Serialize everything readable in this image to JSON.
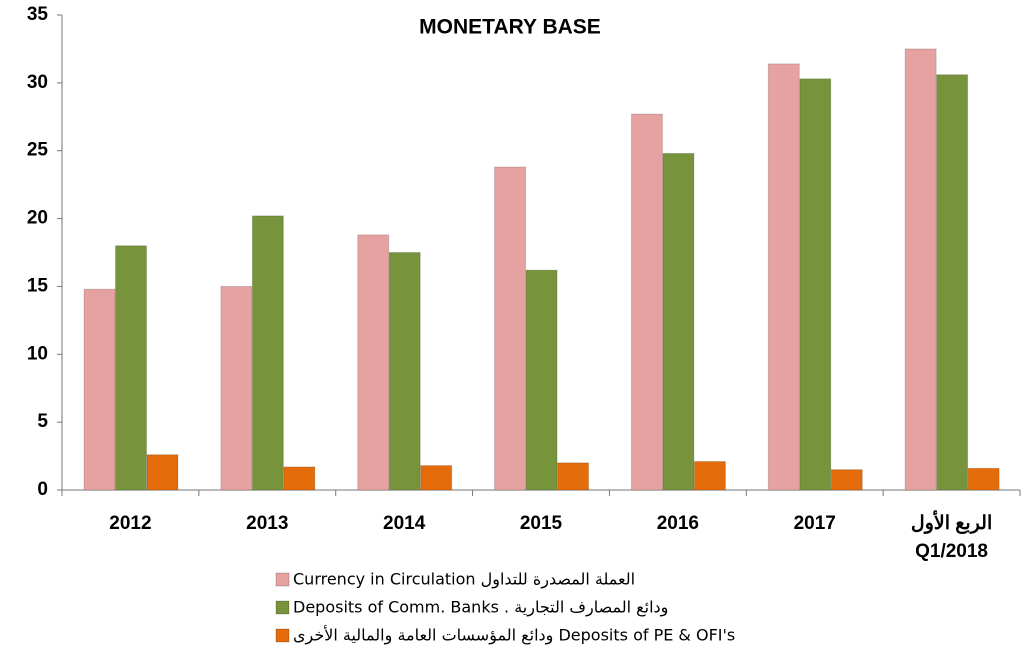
{
  "chart_data": {
    "type": "bar",
    "title": "MONETARY BASE",
    "categories": [
      "2012",
      "2013",
      "2014",
      "2015",
      "2016",
      "2017",
      "الربع الأول\nQ1/2018"
    ],
    "series": [
      {
        "name": "Currency in Circulation العملة المصدرة للتداول",
        "color": "#e6a1a1",
        "values": [
          14.8,
          15.0,
          18.8,
          23.8,
          27.7,
          31.4,
          32.5
        ]
      },
      {
        "name": "Deposits of Comm. Banks . ودائع المصارف التجارية",
        "color": "#77933c",
        "values": [
          18.0,
          20.2,
          17.5,
          16.2,
          24.8,
          30.3,
          30.6
        ]
      },
      {
        "name": "ودائع المؤسسات العامة والمالية الأخرى Deposits of PE & OFI's",
        "color": "#e46c0a",
        "values": [
          2.6,
          1.7,
          1.8,
          2.0,
          2.1,
          1.5,
          1.6
        ]
      }
    ],
    "ylim": [
      0,
      35
    ],
    "yticks": [
      0,
      5,
      10,
      15,
      20,
      25,
      30,
      35
    ],
    "grid": false
  }
}
